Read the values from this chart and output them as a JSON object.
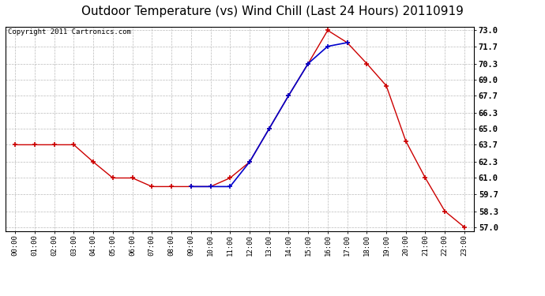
{
  "title": "Outdoor Temperature (vs) Wind Chill (Last 24 Hours) 20110919",
  "copyright": "Copyright 2011 Cartronics.com",
  "x_labels": [
    "00:00",
    "01:00",
    "02:00",
    "03:00",
    "04:00",
    "05:00",
    "06:00",
    "07:00",
    "08:00",
    "09:00",
    "10:00",
    "11:00",
    "12:00",
    "13:00",
    "14:00",
    "15:00",
    "16:00",
    "17:00",
    "18:00",
    "19:00",
    "20:00",
    "21:00",
    "22:00",
    "23:00"
  ],
  "temp_data": [
    63.7,
    63.7,
    63.7,
    63.7,
    62.3,
    61.0,
    61.0,
    60.3,
    60.3,
    60.3,
    60.3,
    61.0,
    62.3,
    65.0,
    67.7,
    70.3,
    73.0,
    72.0,
    70.3,
    68.5,
    64.0,
    61.0,
    58.3,
    57.0
  ],
  "windchill_data": [
    null,
    null,
    null,
    null,
    null,
    null,
    null,
    null,
    null,
    60.3,
    60.3,
    60.3,
    62.3,
    65.0,
    67.7,
    70.3,
    71.7,
    72.0,
    null,
    null,
    null,
    null,
    null,
    null
  ],
  "temp_color": "#cc0000",
  "windchill_color": "#0000cc",
  "ylim_min": 57.0,
  "ylim_max": 73.0,
  "yticks": [
    57.0,
    58.3,
    59.7,
    61.0,
    62.3,
    63.7,
    65.0,
    66.3,
    67.7,
    69.0,
    70.3,
    71.7,
    73.0
  ],
  "background_color": "#ffffff",
  "plot_bg_color": "#ffffff",
  "grid_color": "#bbbbbb",
  "title_fontsize": 11,
  "copyright_fontsize": 6.5
}
